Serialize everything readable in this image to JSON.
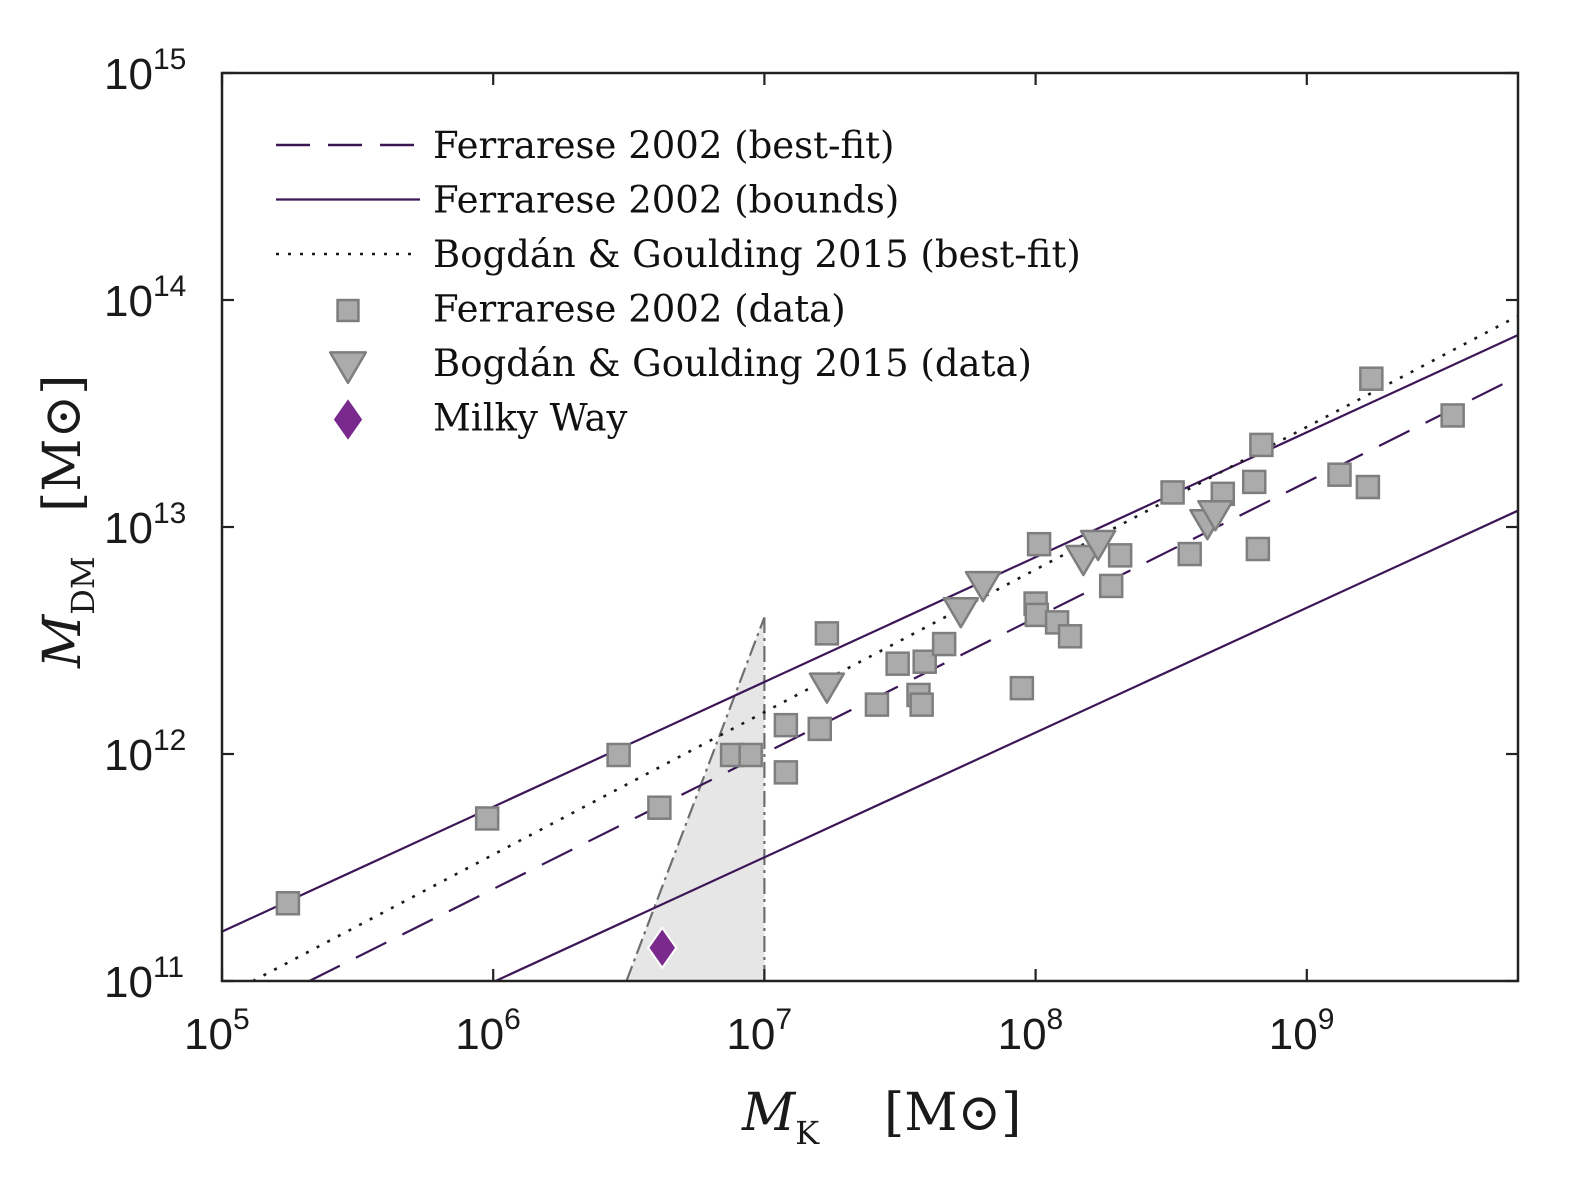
{
  "chart_data": {
    "type": "scatter",
    "xscale": "log",
    "yscale": "log",
    "xlim": [
      100000,
      6000000000
    ],
    "ylim": [
      100000000000,
      1000000000000000
    ],
    "xlabel": {
      "symbol": "M",
      "sub": "K",
      "unit": "[M⊙]"
    },
    "ylabel": {
      "symbol": "M",
      "sub": "DM",
      "unit": "[M⊙]"
    },
    "x_ticks": [
      {
        "base": "10",
        "exp": "5",
        "value": 100000
      },
      {
        "base": "10",
        "exp": "6",
        "value": 1000000
      },
      {
        "base": "10",
        "exp": "7",
        "value": 10000000
      },
      {
        "base": "10",
        "exp": "8",
        "value": 100000000
      },
      {
        "base": "10",
        "exp": "9",
        "value": 1000000000
      }
    ],
    "y_ticks": [
      {
        "base": "10",
        "exp": "11",
        "value": 100000000000
      },
      {
        "base": "10",
        "exp": "12",
        "value": 1000000000000
      },
      {
        "base": "10",
        "exp": "13",
        "value": 10000000000000
      },
      {
        "base": "10",
        "exp": "14",
        "value": 100000000000000
      },
      {
        "base": "10",
        "exp": "15",
        "value": 1000000000000000
      }
    ],
    "grid": false,
    "legend_position": "top-left",
    "legend": [
      {
        "label": "Ferrarese 2002 (best-fit)",
        "style": "dashed-line"
      },
      {
        "label": "Ferrarese 2002 (bounds)",
        "style": "solid-line"
      },
      {
        "label": "Bogdán & Goulding 2015 (best-fit)",
        "style": "dotted-line"
      },
      {
        "label": "Ferrarese 2002 (data)",
        "style": "square"
      },
      {
        "label": "Bogdán & Goulding 2015 (data)",
        "style": "triangle-down"
      },
      {
        "label": "Milky Way",
        "style": "diamond"
      }
    ],
    "lines": [
      {
        "name": "Ferrarese 2002 (best-fit)",
        "style": "dashed",
        "color": "#3d1657",
        "x": [
          210000,
          6000000000
        ],
        "y": [
          100000000000,
          46000000000000
        ]
      },
      {
        "name": "Ferrarese 2002 (bounds)",
        "style": "solid",
        "color": "#3d1657",
        "x": [
          100000,
          6000000000
        ],
        "y": [
          165000000000,
          70000000000000
        ]
      },
      {
        "name": "Ferrarese 2002 (bounds)",
        "style": "solid",
        "color": "#3d1657",
        "x": [
          1020000,
          6000000000
        ],
        "y": [
          100000000000,
          11800000000000
        ]
      },
      {
        "name": "Bogdán & Goulding 2015 (best-fit)",
        "style": "dotted",
        "color": "#1a1a1a",
        "x": [
          130000,
          6000000000
        ],
        "y": [
          100000000000,
          85000000000000
        ]
      }
    ],
    "shaded_region": {
      "color": "#e6e6e6",
      "x": [
        3100000,
        10000000,
        10000000
      ],
      "y": [
        100000000000,
        100000000000,
        4000000000000
      ]
    },
    "series": [
      {
        "name": "Ferrarese 2002 (data)",
        "marker": "square",
        "color": "#ababab",
        "points": [
          [
            175000,
            220000000000
          ],
          [
            950000,
            520000000000
          ],
          [
            2900000,
            990000000000
          ],
          [
            4100000,
            580000000000
          ],
          [
            7600000,
            990000000000
          ],
          [
            8900000,
            990000000000
          ],
          [
            12000000,
            1340000000000
          ],
          [
            12000000,
            830000000000
          ],
          [
            16000000,
            1290000000000
          ],
          [
            17000000,
            3400000000000
          ],
          [
            26000000,
            1650000000000
          ],
          [
            31000000,
            2500000000000
          ],
          [
            37000000,
            1820000000000
          ],
          [
            38000000,
            1650000000000
          ],
          [
            39000000,
            2550000000000
          ],
          [
            46000000,
            3050000000000
          ],
          [
            89000000,
            1950000000000
          ],
          [
            100000000,
            4600000000000
          ],
          [
            101000000,
            4100000000000
          ],
          [
            103000000,
            8400000000000
          ],
          [
            120000000,
            3800000000000
          ],
          [
            134000000,
            3300000000000
          ],
          [
            190000000,
            5500000000000
          ],
          [
            205000000,
            7500000000000
          ],
          [
            320000000,
            14200000000000
          ],
          [
            370000000,
            7600000000000
          ],
          [
            490000000,
            14000000000000
          ],
          [
            640000000,
            15800000000000
          ],
          [
            660000000,
            8000000000000
          ],
          [
            680000000,
            23000000000000
          ],
          [
            1320000000,
            17000000000000
          ],
          [
            1680000000,
            15000000000000
          ],
          [
            1730000000,
            45000000000000
          ],
          [
            3450000000,
            31000000000000
          ]
        ]
      },
      {
        "name": "Bogdán & Goulding 2015 (data)",
        "marker": "triangle-down",
        "color": "#ababab",
        "points": [
          [
            17000000,
            2000000000000
          ],
          [
            53000000,
            4300000000000
          ],
          [
            64000000,
            5600000000000
          ],
          [
            150000000,
            7300000000000
          ],
          [
            170000000,
            8500000000000
          ],
          [
            430000000,
            10500000000000
          ],
          [
            460000000,
            11500000000000
          ]
        ]
      },
      {
        "name": "Milky Way",
        "marker": "diamond",
        "color": "#7a2a8c",
        "points": [
          [
            4200000,
            140000000000
          ]
        ]
      }
    ]
  }
}
